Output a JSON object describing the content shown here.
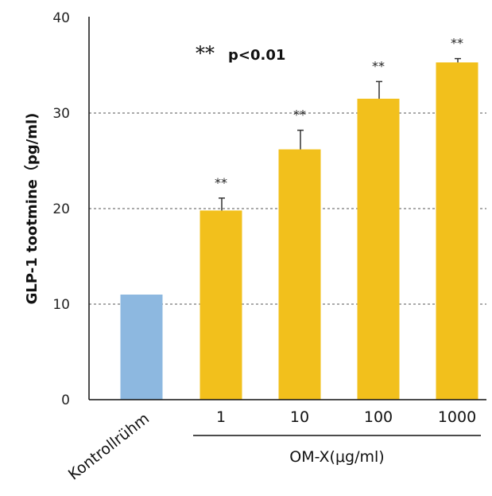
{
  "chart_data": {
    "type": "bar",
    "ylabel": "GLP-1 tootmine（pg/ml)",
    "ylim": [
      0,
      40
    ],
    "yticks": [
      "0",
      "10",
      "20",
      "30",
      "40"
    ],
    "ytick_values": [
      0,
      10,
      20,
      30,
      40
    ],
    "grid": "dashed horizontal",
    "categories": [
      "Kontrollrühm",
      "1",
      "10",
      "100",
      "1000"
    ],
    "values": [
      11,
      19.8,
      26.2,
      31.5,
      35.3
    ],
    "error": [
      0,
      1.3,
      2.0,
      1.8,
      0.4
    ],
    "significance": [
      "",
      "**",
      "**",
      "**",
      "**"
    ],
    "colors": [
      "#8db8e0",
      "#f2c01c",
      "#f2c01c",
      "#f2c01c",
      "#f2c01c"
    ],
    "group_label": "OM-X(μg/ml)",
    "legend_stars": "**",
    "legend_text": "p<0.01"
  }
}
